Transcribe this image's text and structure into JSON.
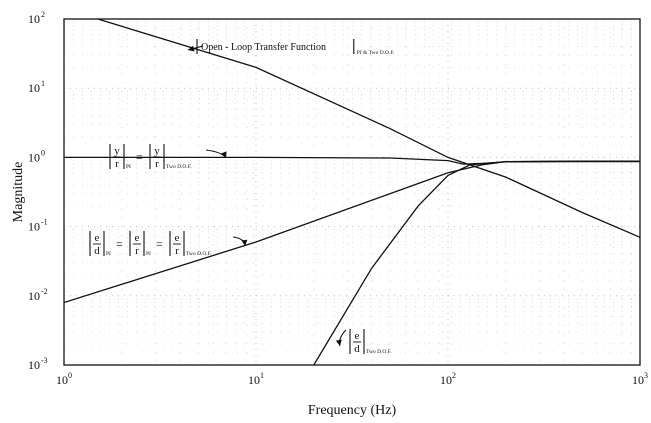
{
  "chart_data": {
    "type": "line",
    "x_scale": "log",
    "y_scale": "log",
    "xlim": [
      1,
      1000
    ],
    "ylim": [
      0.001,
      100
    ],
    "xlabel": "Frequency (Hz)",
    "ylabel": "Magnitude",
    "grid": true,
    "x_ticks": [
      {
        "value": 1,
        "base": "10",
        "exp": "0"
      },
      {
        "value": 10,
        "base": "10",
        "exp": "1"
      },
      {
        "value": 100,
        "base": "10",
        "exp": "2"
      },
      {
        "value": 1000,
        "base": "10",
        "exp": "3"
      }
    ],
    "y_ticks": [
      {
        "value": 100,
        "base": "10",
        "exp": "2"
      },
      {
        "value": 10,
        "base": "10",
        "exp": "1"
      },
      {
        "value": 1,
        "base": "10",
        "exp": "0"
      },
      {
        "value": 0.1,
        "base": "10",
        "exp": "-1"
      },
      {
        "value": 0.01,
        "base": "10",
        "exp": "-2"
      },
      {
        "value": 0.001,
        "base": "10",
        "exp": "-3"
      }
    ],
    "series": [
      {
        "name": "|Open - Loop Transfer Function|_{PI & Two D.O.F.}",
        "x": [
          1.5,
          10,
          50,
          100,
          200,
          500,
          1000
        ],
        "y": [
          100,
          20,
          2.6,
          1.0,
          0.52,
          0.16,
          0.07
        ]
      },
      {
        "name": "|y/r|_PI = |y/r|_{Two D.O.F.}",
        "x": [
          1,
          10,
          50,
          100,
          120,
          150,
          200,
          500,
          1000
        ],
        "y": [
          1,
          1,
          0.98,
          0.9,
          0.8,
          0.82,
          0.86,
          0.87,
          0.87
        ]
      },
      {
        "name": "|e/d|_PI = |e/r|_PI = |e/r|_{Two D.O.F.}",
        "x": [
          1,
          10,
          50,
          100,
          150,
          200,
          500,
          1000
        ],
        "y": [
          0.008,
          0.06,
          0.3,
          0.6,
          0.78,
          0.87,
          0.88,
          0.88
        ]
      },
      {
        "name": "|e/d|_{Two D.O.F.}",
        "x": [
          20,
          40,
          70,
          100,
          130,
          200,
          500,
          1000
        ],
        "y": [
          0.001,
          0.025,
          0.2,
          0.55,
          0.78,
          0.87,
          0.88,
          0.88
        ]
      }
    ],
    "annotations": [
      {
        "kind": "bars",
        "parts": [
          {
            "t": "Open - Loop Transfer Function",
            "sub": "PI & Two D.O.F."
          }
        ]
      },
      {
        "kind": "frac",
        "parts": [
          {
            "num": "y",
            "den": "r",
            "sub": "PI"
          },
          {
            "op": "="
          },
          {
            "num": "y",
            "den": "r",
            "sub": "Two D.O.F."
          }
        ]
      },
      {
        "kind": "frac",
        "parts": [
          {
            "num": "e",
            "den": "d",
            "sub": "PI"
          },
          {
            "op": "="
          },
          {
            "num": "e",
            "den": "r",
            "sub": "PI"
          },
          {
            "op": "="
          },
          {
            "num": "e",
            "den": "r",
            "sub": "Two D.O.F."
          }
        ]
      },
      {
        "kind": "frac",
        "parts": [
          {
            "num": "e",
            "den": "d",
            "sub": "Two D.O.F."
          }
        ]
      }
    ]
  }
}
